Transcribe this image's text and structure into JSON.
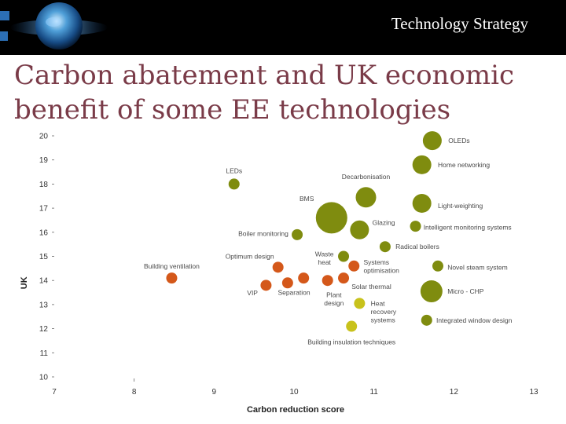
{
  "header": {
    "title": "Technology Strategy"
  },
  "slide": {
    "title_line1": "Carbon abatement and UK economic",
    "title_line2": "benefit of some EE technologies"
  },
  "colors": {
    "olive": "#7f8c0f",
    "orange": "#d4581a",
    "yellow": "#c8c21c",
    "title": "#7a3b48"
  },
  "chart_data": {
    "type": "scatter",
    "xlabel": "Carbon reduction score",
    "ylabel": "UK",
    "xlim": [
      7,
      13
    ],
    "ylim": [
      10,
      20
    ],
    "xticks": [
      "7",
      "8",
      "9",
      "10",
      "11",
      "12",
      "13"
    ],
    "yticks": [
      "10",
      "11",
      "12",
      "13",
      "14",
      "15",
      "16",
      "17",
      "18",
      "19",
      "20"
    ],
    "grid": false,
    "legend": "none",
    "points": [
      {
        "label": "OLEDs",
        "x": 11.73,
        "y": 19.8,
        "size": 12,
        "color": "olive",
        "lx": 11.93,
        "ly": 19.8,
        "anchor": "start"
      },
      {
        "label": "Home networking",
        "x": 11.6,
        "y": 18.8,
        "size": 12,
        "color": "olive",
        "lx": 11.8,
        "ly": 18.8,
        "anchor": "start"
      },
      {
        "label": "LEDs",
        "x": 9.25,
        "y": 18.0,
        "size": 7,
        "color": "olive",
        "lx": 9.25,
        "ly": 18.55,
        "anchor": "middle"
      },
      {
        "label": "Decarbonisation",
        "x": 10.9,
        "y": 17.45,
        "size": 13,
        "color": "olive",
        "lx": 10.9,
        "ly": 18.3,
        "anchor": "middle"
      },
      {
        "label": "BMS",
        "x": 10.47,
        "y": 16.6,
        "size": 20,
        "color": "olive",
        "lx": 10.25,
        "ly": 17.4,
        "anchor": "end"
      },
      {
        "label": "Light-weighting",
        "x": 11.6,
        "y": 17.2,
        "size": 12,
        "color": "olive",
        "lx": 11.8,
        "ly": 17.1,
        "anchor": "start"
      },
      {
        "label": "Glazing",
        "x": 10.82,
        "y": 16.1,
        "size": 12,
        "color": "olive",
        "lx": 10.98,
        "ly": 16.4,
        "anchor": "start"
      },
      {
        "label": "Intelligent monitoring systems",
        "x": 11.52,
        "y": 16.25,
        "size": 7,
        "color": "olive",
        "lx": 11.62,
        "ly": 16.2,
        "anchor": "start"
      },
      {
        "label": "Boiler monitoring",
        "x": 10.04,
        "y": 15.9,
        "size": 7,
        "color": "olive",
        "lx": 9.93,
        "ly": 15.95,
        "anchor": "end"
      },
      {
        "label": "Radical boilers",
        "x": 11.14,
        "y": 15.4,
        "size": 7,
        "color": "olive",
        "lx": 11.27,
        "ly": 15.4,
        "anchor": "start"
      },
      {
        "label": "Waste heat",
        "x": 10.62,
        "y": 15.0,
        "size": 7,
        "color": "olive",
        "lx": 10.38,
        "ly": 15.1,
        "anchor": "middle"
      },
      {
        "label": "Optimum design",
        "x": 9.8,
        "y": 14.55,
        "size": 7,
        "color": "orange",
        "lx": 9.75,
        "ly": 15.0,
        "anchor": "end"
      },
      {
        "label": "Building ventilation",
        "x": 8.47,
        "y": 14.1,
        "size": 7,
        "color": "orange",
        "lx": 8.47,
        "ly": 14.6,
        "anchor": "middle"
      },
      {
        "label": "Systems optimisation",
        "x": 10.75,
        "y": 14.6,
        "size": 7,
        "color": "orange",
        "lx": 10.87,
        "ly": 14.75,
        "anchor": "start"
      },
      {
        "label": "Novel steam system",
        "x": 11.8,
        "y": 14.6,
        "size": 7,
        "color": "olive",
        "lx": 11.92,
        "ly": 14.55,
        "anchor": "start"
      },
      {
        "label": "",
        "x": 10.12,
        "y": 14.1,
        "size": 7,
        "color": "orange",
        "lx": 0,
        "ly": 0,
        "anchor": "start"
      },
      {
        "label": "",
        "x": 10.62,
        "y": 14.1,
        "size": 7,
        "color": "orange",
        "lx": 0,
        "ly": 0,
        "anchor": "start"
      },
      {
        "label": "Solar thermal",
        "x": 10.42,
        "y": 14.0,
        "size": 7,
        "color": "orange",
        "lx": 10.72,
        "ly": 13.75,
        "anchor": "start"
      },
      {
        "label": "VIP",
        "x": 9.65,
        "y": 13.8,
        "size": 7,
        "color": "orange",
        "lx": 9.48,
        "ly": 13.48,
        "anchor": "middle"
      },
      {
        "label": "Separation",
        "x": 9.92,
        "y": 13.9,
        "size": 7,
        "color": "orange",
        "lx": 10.0,
        "ly": 13.5,
        "anchor": "middle"
      },
      {
        "label": "Micro - CHP",
        "x": 11.72,
        "y": 13.55,
        "size": 14,
        "color": "olive",
        "lx": 11.92,
        "ly": 13.55,
        "anchor": "start"
      },
      {
        "label": "Plant design",
        "x": 10.82,
        "y": 13.05,
        "size": 7,
        "color": "yellow",
        "lx": 10.5,
        "ly": 13.4,
        "anchor": "middle"
      },
      {
        "label": "Heat recovery systems",
        "x": 10.82,
        "y": 13.05,
        "size": 0,
        "color": "yellow",
        "lx": 10.96,
        "ly": 13.05,
        "anchor": "start"
      },
      {
        "label": "Integrated window design",
        "x": 11.66,
        "y": 12.35,
        "size": 7,
        "color": "olive",
        "lx": 11.78,
        "ly": 12.35,
        "anchor": "start"
      },
      {
        "label": "",
        "x": 10.72,
        "y": 12.1,
        "size": 7,
        "color": "yellow",
        "lx": 0,
        "ly": 0,
        "anchor": "start"
      },
      {
        "label": "Building insulation techniques",
        "x": 10.72,
        "y": 12.1,
        "size": 0,
        "color": "yellow",
        "lx": 10.72,
        "ly": 11.45,
        "anchor": "middle"
      }
    ]
  }
}
